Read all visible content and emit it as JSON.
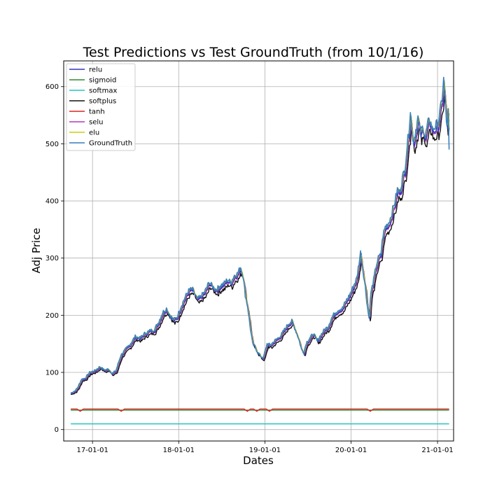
{
  "chart_data": {
    "type": "line",
    "title": "Test Predictions vs Test GroundTruth (from 10/1/16)",
    "xlabel": "Dates",
    "ylabel": "Adj Price",
    "grid": true,
    "legend_position": "top-left",
    "xlim": [
      "2016-09-01",
      "2021-03-10"
    ],
    "ylim": [
      -20,
      645
    ],
    "x_ticks": [
      {
        "value": "2017-01-01",
        "label": "17-01-01"
      },
      {
        "value": "2018-01-01",
        "label": "18-01-01"
      },
      {
        "value": "2019-01-01",
        "label": "19-01-01"
      },
      {
        "value": "2020-01-01",
        "label": "20-01-01"
      },
      {
        "value": "2021-01-01",
        "label": "21-01-01"
      }
    ],
    "y_ticks": [
      0,
      100,
      200,
      300,
      400,
      500,
      600
    ],
    "ground_truth_points": [
      [
        "2016-10-01",
        64
      ],
      [
        "2016-10-20",
        68
      ],
      [
        "2016-11-01",
        75
      ],
      [
        "2016-11-15",
        88
      ],
      [
        "2016-12-01",
        90
      ],
      [
        "2016-12-20",
        100
      ],
      [
        "2017-01-10",
        103
      ],
      [
        "2017-02-01",
        110
      ],
      [
        "2017-02-20",
        104
      ],
      [
        "2017-03-10",
        106
      ],
      [
        "2017-03-25",
        98
      ],
      [
        "2017-04-10",
        103
      ],
      [
        "2017-05-01",
        130
      ],
      [
        "2017-05-20",
        140
      ],
      [
        "2017-06-10",
        150
      ],
      [
        "2017-07-01",
        163
      ],
      [
        "2017-07-20",
        160
      ],
      [
        "2017-08-10",
        168
      ],
      [
        "2017-09-01",
        173
      ],
      [
        "2017-09-20",
        175
      ],
      [
        "2017-10-10",
        190
      ],
      [
        "2017-10-25",
        205
      ],
      [
        "2017-11-10",
        212
      ],
      [
        "2017-11-25",
        200
      ],
      [
        "2017-12-10",
        192
      ],
      [
        "2017-12-25",
        197
      ],
      [
        "2018-01-10",
        215
      ],
      [
        "2018-02-01",
        235
      ],
      [
        "2018-02-15",
        245
      ],
      [
        "2018-03-01",
        245
      ],
      [
        "2018-03-20",
        228
      ],
      [
        "2018-04-01",
        232
      ],
      [
        "2018-04-20",
        240
      ],
      [
        "2018-05-10",
        258
      ],
      [
        "2018-05-25",
        250
      ],
      [
        "2018-06-10",
        245
      ],
      [
        "2018-06-25",
        252
      ],
      [
        "2018-07-10",
        255
      ],
      [
        "2018-07-25",
        262
      ],
      [
        "2018-08-10",
        258
      ],
      [
        "2018-08-25",
        270
      ],
      [
        "2018-09-05",
        272
      ],
      [
        "2018-09-20",
        284
      ],
      [
        "2018-10-01",
        268
      ],
      [
        "2018-10-10",
        235
      ],
      [
        "2018-10-20",
        215
      ],
      [
        "2018-11-01",
        175
      ],
      [
        "2018-11-10",
        150
      ],
      [
        "2018-11-20",
        145
      ],
      [
        "2018-12-01",
        135
      ],
      [
        "2018-12-15",
        128
      ],
      [
        "2018-12-25",
        125
      ],
      [
        "2019-01-10",
        150
      ],
      [
        "2019-01-25",
        148
      ],
      [
        "2019-02-10",
        155
      ],
      [
        "2019-02-25",
        160
      ],
      [
        "2019-03-10",
        165
      ],
      [
        "2019-03-25",
        175
      ],
      [
        "2019-04-10",
        185
      ],
      [
        "2019-04-25",
        190
      ],
      [
        "2019-05-10",
        175
      ],
      [
        "2019-05-25",
        158
      ],
      [
        "2019-06-05",
        140
      ],
      [
        "2019-06-15",
        135
      ],
      [
        "2019-06-25",
        152
      ],
      [
        "2019-07-10",
        160
      ],
      [
        "2019-07-25",
        168
      ],
      [
        "2019-08-10",
        155
      ],
      [
        "2019-08-25",
        165
      ],
      [
        "2019-09-10",
        175
      ],
      [
        "2019-09-25",
        180
      ],
      [
        "2019-10-10",
        195
      ],
      [
        "2019-10-25",
        205
      ],
      [
        "2019-11-10",
        210
      ],
      [
        "2019-11-25",
        212
      ],
      [
        "2019-12-10",
        225
      ],
      [
        "2019-12-25",
        235
      ],
      [
        "2020-01-10",
        250
      ],
      [
        "2020-01-25",
        265
      ],
      [
        "2020-02-10",
        310
      ],
      [
        "2020-02-20",
        280
      ],
      [
        "2020-03-01",
        250
      ],
      [
        "2020-03-10",
        215
      ],
      [
        "2020-03-17",
        195
      ],
      [
        "2020-03-25",
        240
      ],
      [
        "2020-04-05",
        260
      ],
      [
        "2020-04-15",
        285
      ],
      [
        "2020-04-25",
        300
      ],
      [
        "2020-05-05",
        305
      ],
      [
        "2020-05-15",
        340
      ],
      [
        "2020-05-25",
        355
      ],
      [
        "2020-06-05",
        360
      ],
      [
        "2020-06-15",
        370
      ],
      [
        "2020-06-25",
        385
      ],
      [
        "2020-07-05",
        400
      ],
      [
        "2020-07-15",
        420
      ],
      [
        "2020-07-25",
        415
      ],
      [
        "2020-08-05",
        440
      ],
      [
        "2020-08-15",
        455
      ],
      [
        "2020-08-25",
        495
      ],
      [
        "2020-09-01",
        520
      ],
      [
        "2020-09-08",
        560
      ],
      [
        "2020-09-15",
        520
      ],
      [
        "2020-09-22",
        505
      ],
      [
        "2020-10-01",
        525
      ],
      [
        "2020-10-10",
        545
      ],
      [
        "2020-10-20",
        520
      ],
      [
        "2020-11-01",
        530
      ],
      [
        "2020-11-10",
        510
      ],
      [
        "2020-11-20",
        535
      ],
      [
        "2020-12-01",
        540
      ],
      [
        "2020-12-10",
        525
      ],
      [
        "2020-12-20",
        530
      ],
      [
        "2021-01-01",
        535
      ],
      [
        "2021-01-10",
        550
      ],
      [
        "2021-01-20",
        580
      ],
      [
        "2021-01-27",
        612
      ],
      [
        "2021-02-05",
        560
      ],
      [
        "2021-02-10",
        525
      ],
      [
        "2021-02-15",
        555
      ],
      [
        "2021-02-19",
        490
      ]
    ],
    "series": [
      {
        "name": "relu",
        "color": "#3333bb",
        "kind": "lag",
        "lag_days": 3,
        "scale": 0.99
      },
      {
        "name": "sigmoid",
        "color": "#2e8b2e",
        "kind": "flat",
        "level": 34
      },
      {
        "name": "softmax",
        "color": "#22c4c4",
        "kind": "flat",
        "level": 10
      },
      {
        "name": "softplus",
        "color": "#111111",
        "kind": "lag",
        "lag_days": 6,
        "scale": 0.965
      },
      {
        "name": "tanh",
        "color": "#dd2222",
        "kind": "flat",
        "level": 36
      },
      {
        "name": "selu",
        "color": "#bb33bb",
        "kind": "lag",
        "lag_days": 4,
        "scale": 0.985
      },
      {
        "name": "elu",
        "color": "#cccc11",
        "kind": "lag",
        "lag_days": 2,
        "scale": 1.0
      },
      {
        "name": "GroundTruth",
        "color": "#3a7fbf",
        "kind": "truth"
      }
    ]
  }
}
